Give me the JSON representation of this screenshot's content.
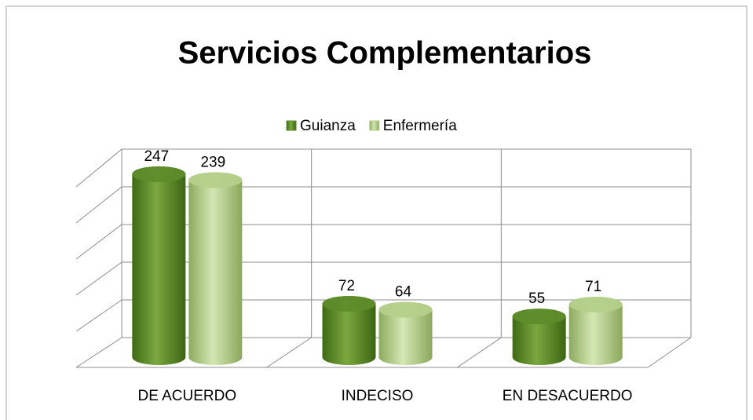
{
  "chart_data": {
    "type": "bar3d",
    "title": "Servicios Complementarios",
    "categories": [
      "DE ACUERDO",
      "INDECISO",
      "EN DESACUERDO"
    ],
    "series": [
      {
        "name": "Guianza",
        "color": "#5e8c2a",
        "values": [
          247,
          72,
          55
        ]
      },
      {
        "name": "Enfermería",
        "color": "#b4d08a",
        "values": [
          239,
          64,
          71
        ]
      }
    ],
    "ylim": [
      0,
      250
    ],
    "yticks": [
      0,
      50,
      100,
      150,
      200,
      250
    ],
    "grid": true,
    "legend": "top"
  }
}
